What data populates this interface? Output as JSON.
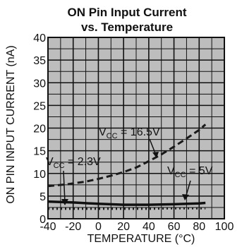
{
  "chart_data": {
    "type": "line",
    "title_line1": "ON Pin Input Current",
    "title_line2": "vs. Temperature",
    "xlabel": "TEMPERATURE (°C)",
    "ylabel": "ON PIN INPUT CURRENT (nA)",
    "xlim": [
      -40,
      100
    ],
    "ylim": [
      0,
      40
    ],
    "x_ticks": [
      -40,
      -20,
      0,
      20,
      40,
      60,
      80,
      100
    ],
    "y_ticks": [
      0,
      5,
      10,
      15,
      20,
      25,
      30,
      35,
      40
    ],
    "grid": true,
    "background": "#bdbdbd",
    "series": [
      {
        "name": "VCC = 16.5V",
        "label_main": "V",
        "label_sub": "CC",
        "label_rest": " = 16.5V",
        "style": "dashed",
        "x": [
          -40,
          -25,
          -10,
          0,
          10,
          20,
          30,
          40,
          50,
          60,
          70,
          80,
          85
        ],
        "y": [
          7.2,
          7.6,
          8.2,
          8.8,
          9.5,
          10.3,
          11.3,
          12.7,
          14.2,
          15.9,
          17.7,
          19.6,
          20.8
        ]
      },
      {
        "name": "VCC = 2.3V",
        "label_main": "V",
        "label_sub": "CC",
        "label_rest": " = 2.3V",
        "style": "dotted",
        "x": [
          -40,
          -20,
          0,
          20,
          40,
          60,
          80,
          85
        ],
        "y": [
          2.2,
          2.2,
          2.2,
          2.2,
          2.2,
          2.3,
          2.3,
          2.3
        ]
      },
      {
        "name": "VCC = 5V",
        "label_main": "V",
        "label_sub": "CC",
        "label_rest": " = 5V",
        "style": "solid",
        "x": [
          -40,
          -20,
          0,
          20,
          40,
          60,
          80,
          85
        ],
        "y": [
          3.8,
          3.6,
          3.3,
          3.1,
          3.1,
          3.2,
          3.4,
          3.5
        ]
      }
    ]
  }
}
